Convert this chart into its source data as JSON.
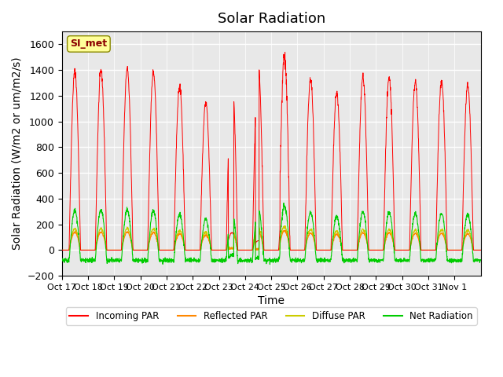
{
  "title": "Solar Radiation",
  "ylabel": "Solar Radiation (W/m2 or um/m2/s)",
  "xlabel": "Time",
  "ylim": [
    -200,
    1700
  ],
  "yticks": [
    -200,
    0,
    200,
    400,
    600,
    800,
    1000,
    1200,
    1400,
    1600
  ],
  "xlabels": [
    "Oct 17",
    "Oct 18",
    "Oct 19",
    "Oct 20",
    "Oct 21",
    "Oct 22",
    "Oct 23",
    "Oct 24",
    "Oct 25",
    "Oct 26",
    "Oct 27",
    "Oct 28",
    "Oct 29",
    "Oct 30",
    "Oct 31",
    "Nov 1"
  ],
  "station_label": "SI_met",
  "bg_color": "#e8e8e8",
  "colors": {
    "incoming": "#ff0000",
    "reflected": "#ff8800",
    "diffuse": "#cccc00",
    "net": "#00cc00"
  },
  "legend_labels": [
    "Incoming PAR",
    "Reflected PAR",
    "Diffuse PAR",
    "Net Radiation"
  ],
  "day_peaks_incoming": [
    1390,
    1395,
    1410,
    1385,
    1275,
    1150,
    1360,
    1450,
    1510,
    1330,
    1220,
    1350,
    1340,
    1310,
    1310,
    1285
  ],
  "title_fontsize": 13,
  "label_fontsize": 10,
  "tick_fontsize": 9
}
